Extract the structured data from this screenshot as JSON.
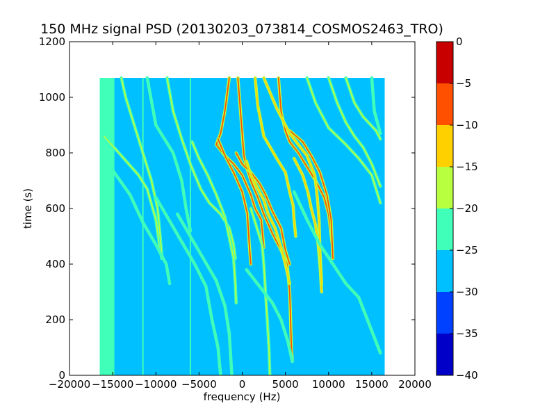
{
  "chart_data": {
    "type": "heatmap",
    "title": "150 MHz signal PSD (20130203_073814_COSMOS2463_TRO)",
    "xlabel": "frequency (Hz)",
    "ylabel": "time (s)",
    "xlim": [
      -20000,
      20000
    ],
    "ylim": [
      0,
      1200
    ],
    "xticks": [
      -20000,
      -15000,
      -10000,
      -5000,
      0,
      5000,
      10000,
      15000,
      20000
    ],
    "yticks": [
      0,
      200,
      400,
      600,
      800,
      1000,
      1200
    ],
    "grid": false,
    "data_extent": {
      "x": [
        -16500,
        16500
      ],
      "y": [
        0,
        1070
      ]
    },
    "background_level": -27,
    "colorbar": {
      "range": [
        -40,
        0
      ],
      "ticks": [
        0,
        -5,
        -10,
        -15,
        -20,
        -25,
        -30,
        -35,
        -40
      ],
      "bands": [
        {
          "from": -40,
          "to": -35,
          "color": "#0000c8"
        },
        {
          "from": -35,
          "to": -30,
          "color": "#0040ff"
        },
        {
          "from": -30,
          "to": -25,
          "color": "#00c0ff"
        },
        {
          "from": -25,
          "to": -20,
          "color": "#40ffb8"
        },
        {
          "from": -20,
          "to": -15,
          "color": "#b8ff40"
        },
        {
          "from": -15,
          "to": -10,
          "color": "#ffd000"
        },
        {
          "from": -10,
          "to": -5,
          "color": "#ff5000"
        },
        {
          "from": -5,
          "to": 0,
          "color": "#c80000"
        }
      ]
    },
    "band_regions": [
      {
        "x": [
          -16500,
          -14800
        ],
        "y": [
          0,
          1070
        ],
        "level": -22
      }
    ],
    "vertical_lines": [
      {
        "x": -11500,
        "y": [
          0,
          1070
        ],
        "level": -24
      },
      {
        "x": -6000,
        "y": [
          0,
          1070
        ],
        "level": -23
      }
    ],
    "series": [
      {
        "level": -18,
        "points": [
          [
            -16000,
            860
          ],
          [
            -14000,
            790
          ],
          [
            -12000,
            720
          ],
          [
            -11000,
            670
          ],
          [
            -10000,
            560
          ],
          [
            -9500,
            450
          ],
          [
            -9300,
            420
          ]
        ]
      },
      {
        "level": -19,
        "points": [
          [
            -14000,
            1070
          ],
          [
            -13500,
            1000
          ],
          [
            -12500,
            900
          ],
          [
            -11500,
            800
          ],
          [
            -10500,
            700
          ],
          [
            -9800,
            600
          ],
          [
            -9500,
            500
          ],
          [
            -9300,
            430
          ]
        ]
      },
      {
        "level": -22,
        "points": [
          [
            -15500,
            760
          ],
          [
            -13000,
            650
          ],
          [
            -11500,
            550
          ],
          [
            -10000,
            470
          ],
          [
            -8800,
            400
          ],
          [
            -8400,
            330
          ]
        ]
      },
      {
        "level": -21,
        "points": [
          [
            -11000,
            1070
          ],
          [
            -10000,
            900
          ],
          [
            -8000,
            800
          ],
          [
            -7000,
            700
          ],
          [
            -6500,
            600
          ],
          [
            -6000,
            520
          ]
        ]
      },
      {
        "level": -19,
        "points": [
          [
            -8700,
            1070
          ],
          [
            -8000,
            950
          ],
          [
            -7000,
            850
          ],
          [
            -6000,
            760
          ],
          [
            -4800,
            670
          ],
          [
            -3800,
            620
          ],
          [
            -2500,
            580
          ],
          [
            -1500,
            530
          ],
          [
            -1000,
            470
          ],
          [
            -800,
            420
          ]
        ]
      },
      {
        "level": -18,
        "points": [
          [
            -5800,
            840
          ],
          [
            -5000,
            780
          ],
          [
            -4000,
            720
          ],
          [
            -3000,
            650
          ],
          [
            -2000,
            570
          ],
          [
            -1000,
            420
          ],
          [
            -800,
            330
          ],
          [
            -700,
            260
          ]
        ]
      },
      {
        "level": -21,
        "points": [
          [
            -10000,
            640
          ],
          [
            -8500,
            560
          ],
          [
            -7000,
            480
          ],
          [
            -5500,
            400
          ],
          [
            -4200,
            320
          ],
          [
            -3500,
            200
          ],
          [
            -2800,
            100
          ],
          [
            -2500,
            0
          ]
        ]
      },
      {
        "level": -23,
        "points": [
          [
            -7500,
            580
          ],
          [
            -6000,
            500
          ],
          [
            -4500,
            420
          ],
          [
            -3000,
            340
          ],
          [
            -2000,
            250
          ],
          [
            -1500,
            150
          ],
          [
            -1200,
            0
          ]
        ]
      },
      {
        "level": -9,
        "points": [
          [
            -1500,
            1070
          ],
          [
            -2000,
            950
          ],
          [
            -2500,
            870
          ],
          [
            -3000,
            830
          ],
          [
            -2000,
            790
          ],
          [
            -1000,
            760
          ],
          [
            0,
            720
          ],
          [
            1000,
            650
          ],
          [
            1500,
            600
          ],
          [
            2200,
            560
          ],
          [
            2500,
            460
          ]
        ]
      },
      {
        "level": -10,
        "points": [
          [
            -2800,
            850
          ],
          [
            -2000,
            790
          ],
          [
            -1000,
            730
          ],
          [
            0,
            660
          ],
          [
            600,
            580
          ],
          [
            800,
            480
          ],
          [
            1000,
            400
          ]
        ]
      },
      {
        "level": -6,
        "points": [
          [
            -500,
            1070
          ],
          [
            -200,
            950
          ],
          [
            0,
            870
          ],
          [
            200,
            790
          ],
          [
            500,
            750
          ],
          [
            1000,
            700
          ],
          [
            1800,
            640
          ],
          [
            2500,
            580
          ],
          [
            3500,
            510
          ],
          [
            4500,
            450
          ],
          [
            5200,
            400
          ],
          [
            5500,
            300
          ],
          [
            5600,
            200
          ],
          [
            5700,
            100
          ],
          [
            5800,
            50
          ]
        ]
      },
      {
        "level": -9,
        "points": [
          [
            -700,
            800
          ],
          [
            0,
            760
          ],
          [
            1000,
            730
          ],
          [
            2000,
            690
          ],
          [
            2700,
            650
          ],
          [
            3500,
            590
          ],
          [
            4500,
            530
          ],
          [
            5000,
            450
          ],
          [
            5500,
            400
          ]
        ]
      },
      {
        "level": -12,
        "points": [
          [
            500,
            770
          ],
          [
            1000,
            720
          ],
          [
            2000,
            660
          ],
          [
            2500,
            630
          ],
          [
            3000,
            580
          ],
          [
            3800,
            530
          ],
          [
            4500,
            460
          ],
          [
            5000,
            400
          ],
          [
            5500,
            330
          ]
        ]
      },
      {
        "level": -14,
        "points": [
          [
            1500,
            1070
          ],
          [
            1800,
            970
          ],
          [
            2500,
            860
          ],
          [
            4000,
            780
          ],
          [
            5000,
            730
          ],
          [
            5500,
            660
          ],
          [
            5900,
            610
          ],
          [
            6000,
            560
          ],
          [
            6200,
            500
          ]
        ]
      },
      {
        "level": -16,
        "points": [
          [
            1000,
            600
          ],
          [
            1800,
            520
          ],
          [
            2300,
            470
          ],
          [
            2500,
            400
          ],
          [
            2700,
            300
          ],
          [
            2900,
            200
          ],
          [
            3100,
            100
          ],
          [
            3200,
            0
          ]
        ]
      },
      {
        "level": -7,
        "points": [
          [
            4200,
            1070
          ],
          [
            4500,
            950
          ],
          [
            5000,
            880
          ],
          [
            5500,
            840
          ],
          [
            6500,
            800
          ],
          [
            7500,
            750
          ],
          [
            8500,
            700
          ],
          [
            9500,
            640
          ],
          [
            10000,
            580
          ],
          [
            10400,
            480
          ]
        ]
      },
      {
        "level": -9,
        "points": [
          [
            5500,
            880
          ],
          [
            7000,
            840
          ],
          [
            8000,
            790
          ],
          [
            9000,
            730
          ],
          [
            9800,
            650
          ],
          [
            10300,
            560
          ],
          [
            10500,
            420
          ]
        ]
      },
      {
        "level": -12,
        "points": [
          [
            6000,
            780
          ],
          [
            7000,
            720
          ],
          [
            7600,
            660
          ],
          [
            8000,
            600
          ],
          [
            8500,
            540
          ],
          [
            8800,
            470
          ],
          [
            9000,
            400
          ],
          [
            9200,
            300
          ]
        ]
      },
      {
        "level": -14,
        "points": [
          [
            2500,
            1070
          ],
          [
            4000,
            960
          ],
          [
            5500,
            870
          ],
          [
            7500,
            790
          ],
          [
            8400,
            720
          ],
          [
            8700,
            640
          ],
          [
            8900,
            560
          ],
          [
            9000,
            450
          ],
          [
            9200,
            330
          ]
        ]
      },
      {
        "level": -18,
        "points": [
          [
            10000,
            1070
          ],
          [
            11000,
            980
          ],
          [
            12000,
            910
          ],
          [
            13000,
            860
          ],
          [
            14000,
            820
          ],
          [
            15000,
            760
          ],
          [
            16000,
            680
          ]
        ]
      },
      {
        "level": -19,
        "points": [
          [
            7500,
            1070
          ],
          [
            8500,
            980
          ],
          [
            10000,
            890
          ],
          [
            12000,
            830
          ],
          [
            13500,
            780
          ],
          [
            15000,
            720
          ],
          [
            16000,
            620
          ]
        ]
      },
      {
        "level": -20,
        "points": [
          [
            12000,
            1070
          ],
          [
            13000,
            980
          ],
          [
            14000,
            930
          ],
          [
            15500,
            880
          ],
          [
            16000,
            850
          ]
        ]
      },
      {
        "level": -21,
        "points": [
          [
            15000,
            1070
          ],
          [
            15300,
            950
          ],
          [
            16000,
            870
          ]
        ]
      },
      {
        "level": -23,
        "points": [
          [
            6000,
            660
          ],
          [
            7500,
            560
          ],
          [
            9000,
            470
          ],
          [
            10500,
            400
          ],
          [
            12000,
            330
          ],
          [
            13500,
            280
          ],
          [
            14500,
            200
          ],
          [
            15500,
            120
          ],
          [
            16000,
            80
          ]
        ]
      },
      {
        "level": -22,
        "points": [
          [
            500,
            380
          ],
          [
            2000,
            320
          ],
          [
            3500,
            260
          ],
          [
            4500,
            200
          ],
          [
            5300,
            120
          ],
          [
            5800,
            50
          ]
        ]
      }
    ]
  }
}
